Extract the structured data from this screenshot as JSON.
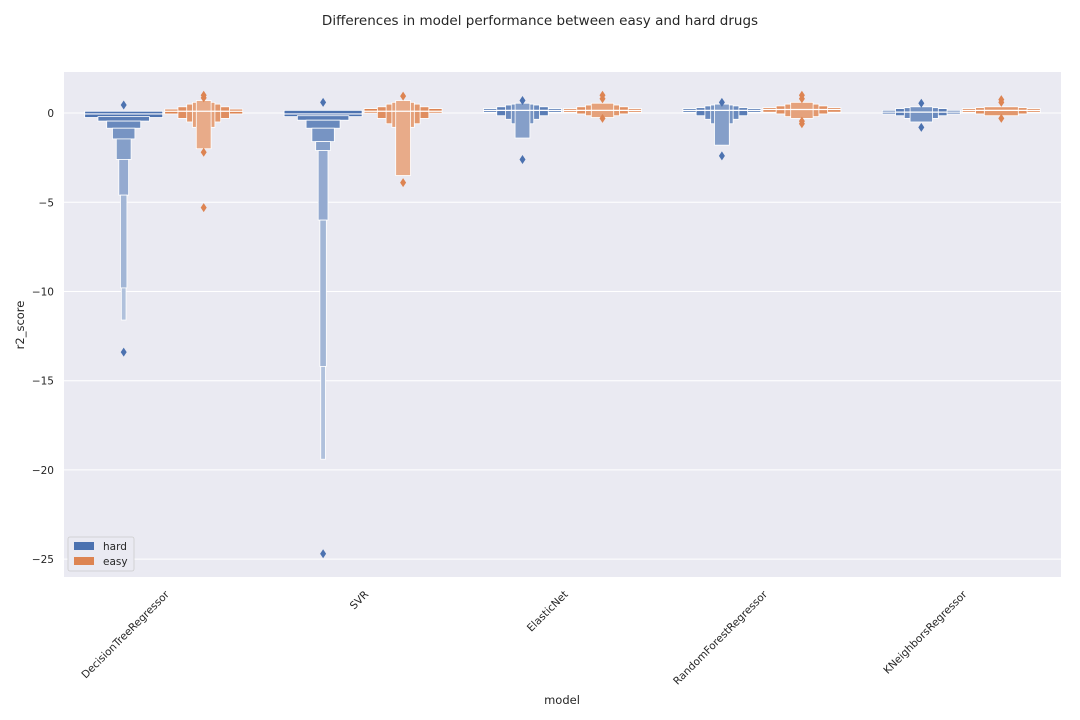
{
  "chart_data": {
    "type": "boxenplot",
    "title": "Differences in model performance between easy and hard drugs",
    "xlabel": "model",
    "ylabel": "r2_score",
    "ylim": [
      -26,
      2.3
    ],
    "yticks": [
      0,
      -5,
      -10,
      -15,
      -20,
      -25
    ],
    "grid": true,
    "legend_position": "lower-left",
    "categories": [
      "DecisionTreeRegressor",
      "SVR",
      "ElasticNet",
      "RandomForestRegressor",
      "KNeighborsRegressor"
    ],
    "series": [
      {
        "name": "hard",
        "color": "#4c72b0",
        "groups": [
          {
            "median": -0.05,
            "levels": [
              [
                -0.25,
                0.1
              ],
              [
                -0.45,
                -0.2
              ],
              [
                -0.85,
                -0.45
              ],
              [
                -1.45,
                -0.85
              ],
              [
                -2.6,
                -1.45
              ],
              [
                -4.6,
                -2.6
              ],
              [
                -9.8,
                -4.6
              ],
              [
                -11.6,
                -9.8
              ]
            ],
            "outliers": [
              0.45,
              -13.4
            ]
          },
          {
            "median": -0.05,
            "levels": [
              [
                -0.2,
                0.15
              ],
              [
                -0.4,
                -0.15
              ],
              [
                -0.85,
                -0.4
              ],
              [
                -1.6,
                -0.85
              ],
              [
                -2.1,
                -1.6
              ],
              [
                -6.0,
                -2.1
              ],
              [
                -14.2,
                -6.0
              ],
              [
                -19.4,
                -14.2
              ]
            ],
            "outliers": [
              0.6,
              -24.7
            ]
          },
          {
            "median": 0.15,
            "levels": [
              [
                0.05,
                0.25
              ],
              [
                -0.15,
                0.35
              ],
              [
                -0.35,
                0.45
              ],
              [
                -0.6,
                0.5
              ],
              [
                -1.4,
                0.55
              ]
            ],
            "outliers": [
              0.7,
              -2.6
            ]
          },
          {
            "median": 0.15,
            "levels": [
              [
                0.05,
                0.25
              ],
              [
                -0.15,
                0.3
              ],
              [
                -0.35,
                0.4
              ],
              [
                -0.6,
                0.45
              ],
              [
                -1.8,
                0.5
              ]
            ],
            "outliers": [
              0.6,
              -2.4
            ]
          },
          {
            "median": 0.05,
            "levels": [
              [
                -0.05,
                0.15
              ],
              [
                -0.15,
                0.25
              ],
              [
                -0.3,
                0.3
              ],
              [
                -0.5,
                0.35
              ]
            ],
            "outliers": [
              0.55,
              -0.8
            ]
          }
        ]
      },
      {
        "name": "easy",
        "color": "#dd8452",
        "groups": [
          {
            "median": 0.1,
            "levels": [
              [
                -0.05,
                0.22
              ],
              [
                -0.3,
                0.35
              ],
              [
                -0.5,
                0.5
              ],
              [
                -0.8,
                0.6
              ],
              [
                -2.0,
                0.7
              ]
            ],
            "outliers": [
              1.0,
              0.85,
              -2.2,
              -5.3
            ]
          },
          {
            "median": 0.1,
            "levels": [
              [
                0.0,
                0.25
              ],
              [
                -0.3,
                0.35
              ],
              [
                -0.6,
                0.5
              ],
              [
                -0.8,
                0.6
              ],
              [
                -3.5,
                0.7
              ]
            ],
            "outliers": [
              0.95,
              -3.9
            ]
          },
          {
            "median": 0.15,
            "levels": [
              [
                0.05,
                0.25
              ],
              [
                -0.05,
                0.35
              ],
              [
                -0.15,
                0.45
              ],
              [
                -0.25,
                0.55
              ]
            ],
            "outliers": [
              1.0,
              0.8,
              -0.3
            ]
          },
          {
            "median": 0.2,
            "levels": [
              [
                0.05,
                0.3
              ],
              [
                -0.05,
                0.4
              ],
              [
                -0.2,
                0.5
              ],
              [
                -0.3,
                0.6
              ]
            ],
            "outliers": [
              1.0,
              0.8,
              -0.45,
              -0.6
            ]
          },
          {
            "median": 0.15,
            "levels": [
              [
                0.05,
                0.25
              ],
              [
                -0.05,
                0.3
              ],
              [
                -0.15,
                0.35
              ]
            ],
            "outliers": [
              0.75,
              0.6,
              -0.3
            ]
          }
        ]
      }
    ],
    "legend": [
      {
        "label": "hard",
        "color": "#4c72b0"
      },
      {
        "label": "easy",
        "color": "#dd8452"
      }
    ]
  }
}
